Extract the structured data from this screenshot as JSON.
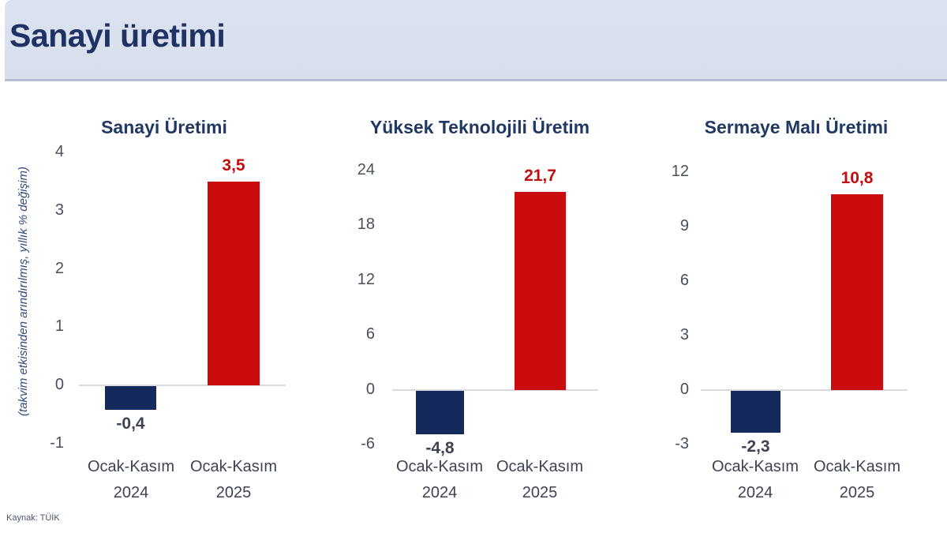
{
  "header": {
    "title": "Sanayi üretimi"
  },
  "axis_note": "(takvim etkisinden arındırılmış, yıllık % değişim)",
  "source": "Kaynak: TÜİK",
  "colors": {
    "header_bg": "#dde2f0",
    "title_navy": "#1f3864",
    "bar_2024_navy": "#152a5c",
    "bar_2025_red": "#c90d0e",
    "positive_label_red": "#c00d0e",
    "negative_label_gray": "#3d4350",
    "tick_gray": "#4a4f5e",
    "axis_line_gray": "#d9d9dd"
  },
  "chart_data": [
    {
      "type": "bar",
      "title": "Sanayi Üretimi",
      "categories": [
        "Ocak-Kasım 2024",
        "Ocak-Kasım 2025"
      ],
      "values": [
        -0.4,
        3.5
      ],
      "value_labels": [
        "-0,4",
        "3,5"
      ],
      "yticks": [
        4,
        3,
        2,
        1,
        0,
        -1
      ],
      "ylim": [
        -1,
        4
      ],
      "grid": false,
      "legend": false
    },
    {
      "type": "bar",
      "title": "Yüksek Teknolojili Üretim",
      "categories": [
        "Ocak-Kasım 2024",
        "Ocak-Kasım 2025"
      ],
      "values": [
        -4.8,
        21.7
      ],
      "value_labels": [
        "-4,8",
        "21,7"
      ],
      "yticks": [
        24,
        18,
        12,
        6,
        0,
        -6
      ],
      "ylim": [
        -6,
        24
      ],
      "grid": false,
      "legend": false
    },
    {
      "type": "bar",
      "title": "Sermaye Malı Üretimi",
      "categories": [
        "Ocak-Kasım 2024",
        "Ocak-Kasım 2025"
      ],
      "values": [
        -2.3,
        10.8
      ],
      "value_labels": [
        "-2,3",
        "10,8"
      ],
      "yticks": [
        12,
        9,
        6,
        3,
        0,
        -3
      ],
      "ylim": [
        -3,
        12
      ],
      "grid": false,
      "legend": false
    }
  ]
}
